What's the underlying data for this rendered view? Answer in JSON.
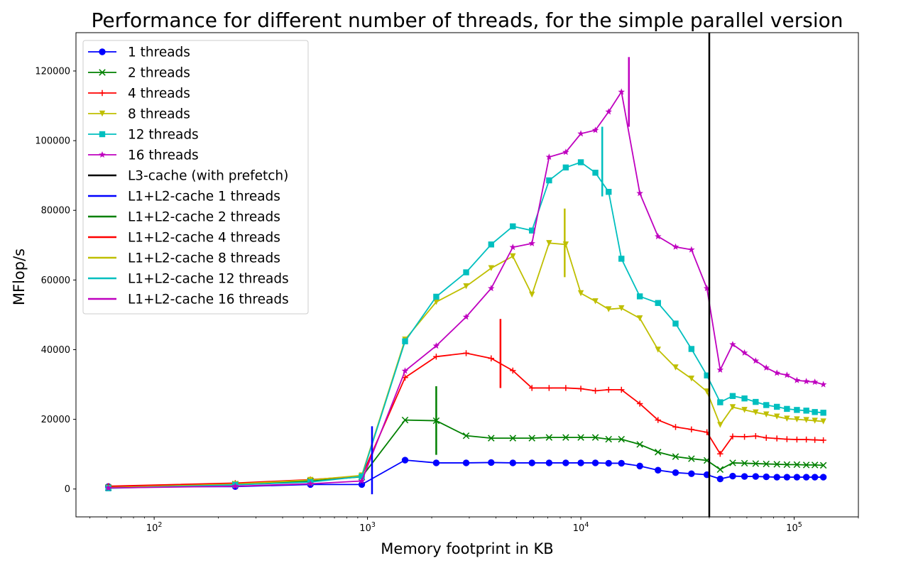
{
  "chart_data": {
    "type": "line",
    "title": "Performance for different number of threads, for the simple parallel version",
    "xlabel": "Memory footprint in KB",
    "ylabel": "MFlop/s",
    "xscale": "log",
    "xlim": [
      43,
      200000
    ],
    "ylim": [
      -8000,
      131000
    ],
    "xticks": [
      {
        "value": 100,
        "base": "10",
        "exp": "2"
      },
      {
        "value": 1000,
        "base": "10",
        "exp": "3"
      },
      {
        "value": 10000,
        "base": "10",
        "exp": "4"
      },
      {
        "value": 100000,
        "base": "10",
        "exp": "5"
      }
    ],
    "yticks": [
      {
        "value": 0,
        "label": "0"
      },
      {
        "value": 20000,
        "label": "20000"
      },
      {
        "value": 40000,
        "label": "40000"
      },
      {
        "value": 60000,
        "label": "60000"
      },
      {
        "value": 80000,
        "label": "80000"
      },
      {
        "value": 100000,
        "label": "100000"
      },
      {
        "value": 120000,
        "label": "120000"
      }
    ],
    "grid": false,
    "legend_position": "top-left",
    "series": [
      {
        "name": "1 threads",
        "color": "#0000ff",
        "marker": "circle",
        "x": [
          61,
          240,
          540,
          940,
          1500,
          2100,
          2900,
          3800,
          4800,
          5900,
          7100,
          8500,
          10000,
          11700,
          13500,
          15500,
          18900,
          23000,
          27800,
          33000,
          39000,
          45000,
          51500,
          58500,
          66000,
          74000,
          83000,
          92500,
          103000,
          114000,
          125000,
          137000
        ],
        "y": [
          700,
          700,
          1300,
          1300,
          8300,
          7500,
          7500,
          7600,
          7500,
          7500,
          7500,
          7500,
          7500,
          7500,
          7400,
          7400,
          6600,
          5400,
          4700,
          4400,
          4100,
          2900,
          3700,
          3600,
          3600,
          3500,
          3400,
          3400,
          3400,
          3400,
          3400,
          3400
        ]
      },
      {
        "name": "2 threads",
        "color": "#008000",
        "marker": "x",
        "x": [
          61,
          240,
          540,
          940,
          1500,
          2100,
          2900,
          3800,
          4800,
          5900,
          7100,
          8500,
          10000,
          11700,
          13500,
          15500,
          18900,
          23000,
          27800,
          33000,
          39000,
          45000,
          51500,
          58500,
          66000,
          74000,
          83000,
          92500,
          103000,
          114000,
          125000,
          137000
        ],
        "y": [
          400,
          1400,
          2300,
          3500,
          19800,
          19600,
          15300,
          14600,
          14600,
          14600,
          14800,
          14800,
          14800,
          14800,
          14300,
          14300,
          12800,
          10600,
          9300,
          8700,
          8200,
          5600,
          7500,
          7400,
          7300,
          7200,
          7100,
          7000,
          7000,
          6900,
          6900,
          6800
        ]
      },
      {
        "name": "4 threads",
        "color": "#ff0000",
        "marker": "plus",
        "x": [
          61,
          240,
          540,
          940,
          1500,
          2100,
          2900,
          3800,
          4800,
          5900,
          7100,
          8500,
          10000,
          11700,
          13500,
          15500,
          18900,
          23000,
          27800,
          33000,
          39000,
          45000,
          51500,
          58500,
          66000,
          74000,
          83000,
          92500,
          103000,
          114000,
          125000,
          137000
        ],
        "y": [
          800,
          1700,
          2700,
          3700,
          32000,
          38000,
          39000,
          37500,
          34000,
          29000,
          29000,
          29000,
          28800,
          28200,
          28500,
          28500,
          24500,
          19800,
          17800,
          17100,
          16300,
          10100,
          15100,
          15000,
          15200,
          14700,
          14500,
          14300,
          14200,
          14200,
          14100,
          14000
        ]
      },
      {
        "name": "8 threads",
        "color": "#bfbf00",
        "marker": "triangle-down",
        "x": [
          61,
          240,
          540,
          940,
          1500,
          2100,
          2900,
          3800,
          4800,
          5900,
          7100,
          8500,
          10000,
          11700,
          13500,
          15500,
          18900,
          23000,
          27800,
          33000,
          39000,
          45000,
          51500,
          58500,
          66000,
          74000,
          83000,
          92500,
          103000,
          114000,
          125000,
          137000
        ],
        "y": [
          400,
          1400,
          2600,
          3900,
          42900,
          53700,
          58200,
          63400,
          66800,
          55800,
          70600,
          70200,
          56200,
          53900,
          51600,
          51900,
          49000,
          40000,
          34900,
          31700,
          28000,
          18400,
          23500,
          22700,
          22000,
          21400,
          20800,
          20200,
          20000,
          19800,
          19600,
          19400
        ]
      },
      {
        "name": "12 threads",
        "color": "#00bfbf",
        "marker": "square",
        "x": [
          61,
          240,
          540,
          940,
          1500,
          2100,
          2900,
          3800,
          4800,
          5900,
          7100,
          8500,
          10000,
          11700,
          13500,
          15500,
          18900,
          23000,
          27800,
          33000,
          39000,
          45000,
          51500,
          58500,
          66000,
          74000,
          83000,
          92500,
          103000,
          114000,
          125000,
          137000
        ],
        "y": [
          200,
          1200,
          2000,
          3600,
          42400,
          55200,
          62200,
          70200,
          75400,
          74200,
          88600,
          92300,
          93800,
          90800,
          85300,
          66100,
          55300,
          53400,
          47500,
          40200,
          32600,
          24900,
          26700,
          26000,
          25000,
          24100,
          23600,
          23000,
          22700,
          22500,
          22100,
          21900
        ]
      },
      {
        "name": "16 threads",
        "color": "#bf00bf",
        "marker": "star",
        "x": [
          61,
          240,
          540,
          940,
          1500,
          2100,
          2900,
          3800,
          4800,
          5900,
          7100,
          8500,
          10000,
          11700,
          13500,
          15500,
          18900,
          23000,
          27800,
          33000,
          39000,
          45000,
          51500,
          58500,
          66000,
          74000,
          83000,
          92500,
          103000,
          114000,
          125000,
          137000
        ],
        "y": [
          300,
          800,
          1500,
          2300,
          33900,
          41100,
          49400,
          57600,
          69400,
          70500,
          95300,
          96700,
          102000,
          103000,
          108300,
          114000,
          84900,
          72500,
          69500,
          68700,
          57600,
          34200,
          41500,
          39100,
          36800,
          34800,
          33300,
          32700,
          31200,
          30900,
          30700,
          30000
        ]
      }
    ],
    "vlines": [
      {
        "name": "L3-cache (with prefetch)",
        "color": "#000000",
        "x": 40000,
        "y_range": "full",
        "width": 2.5
      },
      {
        "name": "L1+L2-cache 1 threads",
        "color": "#0000ff",
        "x": 1050,
        "y_range": [
          -1500,
          18000
        ],
        "width": 2.5
      },
      {
        "name": "L1+L2-cache 2 threads",
        "color": "#008000",
        "x": 2100,
        "y_range": [
          9800,
          29500
        ],
        "width": 2.5
      },
      {
        "name": "L1+L2-cache 4 threads",
        "color": "#ff0000",
        "x": 4200,
        "y_range": [
          29000,
          48800
        ],
        "width": 2.5
      },
      {
        "name": "L1+L2-cache 8 threads",
        "color": "#bfbf00",
        "x": 8400,
        "y_range": [
          60800,
          80500
        ],
        "width": 2.5
      },
      {
        "name": "L1+L2-cache 12 threads",
        "color": "#00bfbf",
        "x": 12600,
        "y_range": [
          84000,
          104000
        ],
        "width": 2.5
      },
      {
        "name": "L1+L2-cache 16 threads",
        "color": "#bf00bf",
        "x": 16800,
        "y_range": [
          104000,
          124000
        ],
        "width": 2.5
      }
    ]
  }
}
